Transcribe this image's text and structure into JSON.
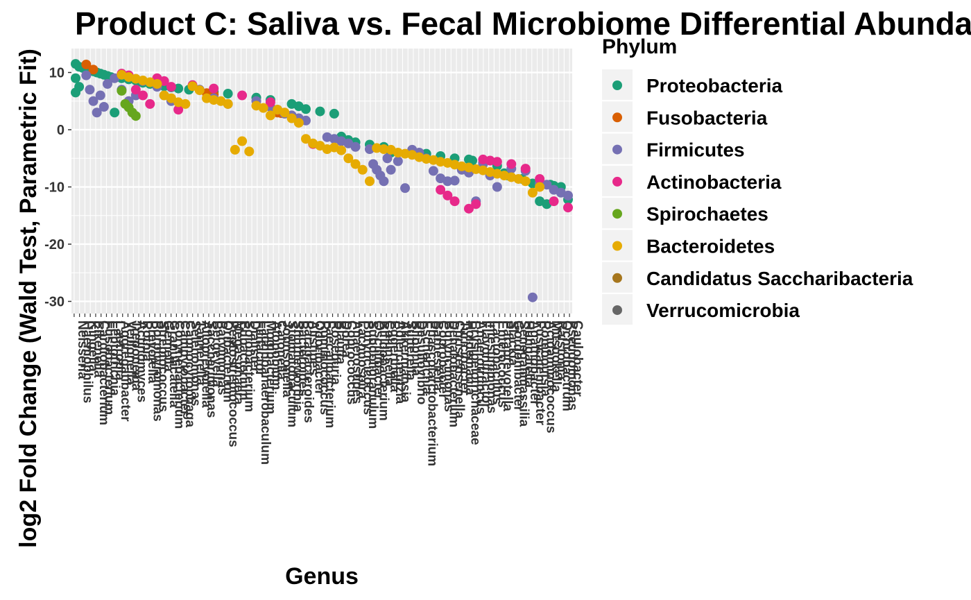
{
  "chart_data": {
    "type": "scatter",
    "title": "Product C: Saliva vs. Fecal Microbiome Differential Abundance",
    "xlabel": "Genus",
    "ylabel": "log2 Fold Change (Wald Test, Parametric Fit)",
    "ylim": [
      -31.5,
      14
    ],
    "yticks": [
      10,
      0,
      -10,
      -20,
      -30
    ],
    "grid": true,
    "legend": {
      "title": "Phylum",
      "placement": "right",
      "items": [
        {
          "name": "Proteobacteria",
          "color": "#1B9E77"
        },
        {
          "name": "Fusobacteria",
          "color": "#D95F02"
        },
        {
          "name": "Firmicutes",
          "color": "#7570B3"
        },
        {
          "name": "Actinobacteria",
          "color": "#E7298A"
        },
        {
          "name": "Spirochaetes",
          "color": "#66A61E"
        },
        {
          "name": "Bacteroidetes",
          "color": "#E6AB02"
        },
        {
          "name": "Candidatus Saccharibacteria",
          "color": "#A6761D"
        },
        {
          "name": "Verrucomicrobia",
          "color": "#666666"
        }
      ]
    },
    "genera": [
      "Neisseria",
      "Haemophilus",
      "Kingella",
      "Eikenella",
      "Cardiobacterium",
      "Fusobacterium",
      "Leptotrichia",
      "Lautropia",
      "Aggregatibacter",
      "Veillonella",
      "Treponema",
      "Actinomyces",
      "Rothia",
      "Prevotella",
      "Porphyromonas",
      "Streptococcus",
      "Gemella",
      "Granulicatella",
      "Corynebacterium",
      "Campylobacter",
      "Capnocytophaga",
      "Selenomonas",
      "Tannerella",
      "Alloprevotella",
      "Saccharimonas",
      "Bergeyella",
      "Parvimonas",
      "Oribacterium",
      "Peptostreptococcus",
      "Megasphaera",
      "Eubacterium",
      "Solobacterium",
      "Dialister",
      "Filifactor",
      "Lachnoanaerobaculum",
      "Mogibacterium",
      "Atopobium",
      "Catonella",
      "Johnsonella",
      "Stomatobaculum",
      "Shuttleworthia",
      "Bacteroides",
      "Parabacteroides",
      "Alistipes",
      "Odoribacter",
      "Ruminococcus",
      "Faecalibacterium",
      "Roseburia",
      "Blautia",
      "Dorea",
      "Coprococcus",
      "Anaerostipes",
      "Lachnospira",
      "Butyricicoccus",
      "Subdoligranulum",
      "Oscillibacter",
      "Bifidobacterium",
      "Collinsella",
      "Eggerthella",
      "Adlercreutzia",
      "Akkermansia",
      "Sutterella",
      "Bilophila",
      "Desulfovibrio",
      "Escherichia",
      "Phascolarctobacterium",
      "Barnesiella",
      "Coprobacter",
      "Butyricimonas",
      "Dehalobacterium",
      "Christensenella",
      "Turicibacter",
      "Holdemania",
      "Erysipelotrichaceae",
      "Anaerotruncus",
      "Flavonifractor",
      "Intestinimonas",
      "Lactobacillus",
      "Enterococcus",
      "Paraprevotella",
      "Slackia",
      "Gordonibacter",
      "Senegalimassilia",
      "Hungatella",
      "Agathobacter",
      "Fusicatenibacter",
      "Romboutsia",
      "Acidaminococcus",
      "Mitsuokella",
      "Ralstonia",
      "Ochrobactrum",
      "Pseudomonas",
      "Caulobacter"
    ],
    "series": [
      {
        "name": "Proteobacteria",
        "x": [
          1,
          1,
          1,
          2,
          2,
          3,
          4,
          5,
          6,
          7,
          8,
          9,
          10,
          11,
          12,
          14,
          16,
          18,
          19,
          20,
          22,
          24,
          26,
          28,
          30,
          33,
          40,
          44,
          52,
          56,
          62,
          64,
          66,
          70,
          74,
          76,
          78,
          80,
          84,
          88,
          90,
          96,
          100,
          104,
          108,
          112,
          113,
          116,
          120,
          122,
          123,
          127,
          130,
          132,
          134,
          135,
          136,
          138,
          140
        ],
        "y": [
          11.5,
          9,
          6.5,
          11,
          7.5,
          10.8,
          10.6,
          10.4,
          10.2,
          10,
          9.8,
          9.6,
          9.4,
          9.2,
          3,
          9,
          8.8,
          8.6,
          8.4,
          8.2,
          8,
          7.8,
          7.6,
          7.4,
          7.2,
          7,
          6.6,
          6.3,
          5.6,
          5.2,
          4.5,
          4.1,
          3.6,
          3.2,
          2.8,
          -1.2,
          -1.8,
          -2.2,
          -2.6,
          -3,
          -4,
          -3.8,
          -4.2,
          -4.6,
          -5,
          -5.2,
          -5.4,
          -5.8,
          -6.3,
          -7.6,
          -8,
          -8.6,
          -9.4,
          -12.5,
          -13,
          -9.6,
          -9.8,
          -10,
          -12.2
        ]
      },
      {
        "name": "Fusobacteria",
        "x": [
          4,
          6,
          38,
          40,
          58,
          59
        ],
        "y": [
          11.4,
          10.5,
          6.4,
          6.2,
          3,
          2.9
        ]
      },
      {
        "name": "Firmicutes",
        "x": [
          4,
          5,
          6,
          7,
          8,
          9,
          10,
          12,
          14,
          16,
          18,
          20,
          24,
          26,
          28,
          36,
          40,
          44,
          52,
          56,
          58,
          60,
          62,
          64,
          66,
          72,
          74,
          76,
          78,
          80,
          84,
          85,
          86,
          87,
          88,
          89,
          90,
          92,
          94,
          96,
          98,
          100,
          102,
          104,
          106,
          108,
          110,
          112,
          114,
          116,
          118,
          120,
          124,
          128,
          130,
          132,
          134,
          136,
          138,
          140
        ],
        "y": [
          9.5,
          7,
          5,
          3,
          6,
          4,
          8,
          9,
          7,
          5,
          6,
          8.5,
          7.5,
          6,
          5,
          7,
          5.5,
          4.5,
          5,
          4,
          3.5,
          2.8,
          2.5,
          2,
          1.6,
          -1.3,
          -1.6,
          -2,
          -2.4,
          -3,
          -3.4,
          -6,
          -7,
          -8,
          -9,
          -5,
          -7,
          -5.5,
          -10.2,
          -3.5,
          -4,
          -5,
          -7.2,
          -8.5,
          -9,
          -8.9,
          -7,
          -7.5,
          -12.5,
          -6,
          -8,
          -10,
          -6.8,
          -7.2,
          -29.3,
          -9.4,
          -9.6,
          -10.5,
          -11,
          -11.5
        ]
      },
      {
        "name": "Actinobacteria",
        "x": [
          14,
          16,
          18,
          20,
          22,
          24,
          26,
          28,
          30,
          34,
          40,
          48,
          56,
          68,
          104,
          106,
          108,
          112,
          114,
          116,
          118,
          120,
          124,
          128,
          132,
          136,
          140
        ],
        "y": [
          9.8,
          9.5,
          7,
          6,
          4.5,
          9,
          8.5,
          7.5,
          3.5,
          7.8,
          7.2,
          6,
          4.8,
          -2.5,
          -10.5,
          -11.5,
          -12.5,
          -13.8,
          -13,
          -5.2,
          -5.4,
          -5.6,
          -6,
          -6.8,
          -8.6,
          -12.5,
          -13.6
        ]
      },
      {
        "name": "Spirochaetes",
        "x": [
          14,
          15,
          16,
          17,
          18
        ],
        "y": [
          6.8,
          4.5,
          3.9,
          3,
          2.4
        ]
      },
      {
        "name": "Bacteroidetes",
        "x": [
          14,
          16,
          18,
          20,
          22,
          24,
          26,
          28,
          30,
          32,
          34,
          36,
          38,
          40,
          42,
          44,
          46,
          48,
          50,
          52,
          54,
          56,
          58,
          60,
          62,
          64,
          66,
          68,
          70,
          72,
          74,
          76,
          78,
          80,
          82,
          84,
          86,
          88,
          90,
          92,
          94,
          96,
          98,
          100,
          102,
          104,
          106,
          108,
          110,
          112,
          114,
          116,
          118,
          120,
          122,
          124,
          126,
          128,
          130,
          132
        ],
        "y": [
          9.6,
          9.2,
          8.9,
          8.6,
          8.3,
          8,
          6,
          5.5,
          4.8,
          4.5,
          7.6,
          6.9,
          5.5,
          5.2,
          5,
          4.5,
          -3.5,
          -2,
          -3.8,
          4.2,
          3.8,
          2.5,
          3.5,
          3,
          2,
          1.2,
          -1.6,
          -2.4,
          -2.8,
          -3.4,
          -3.1,
          -3.6,
          -5,
          -6,
          -7,
          -9,
          -3.2,
          -3.4,
          -3.5,
          -4,
          -4.2,
          -4.4,
          -4.8,
          -5.1,
          -5.3,
          -5.6,
          -5.8,
          -6.1,
          -6.4,
          -6.6,
          -6.9,
          -7.1,
          -7.4,
          -7.7,
          -8,
          -8.3,
          -8.6,
          -9,
          -11,
          -10
        ]
      },
      {
        "name": "Candidatus Saccharibacteria",
        "x": [],
        "y": []
      },
      {
        "name": "Verrucomicrobia",
        "x": [],
        "y": []
      }
    ]
  }
}
